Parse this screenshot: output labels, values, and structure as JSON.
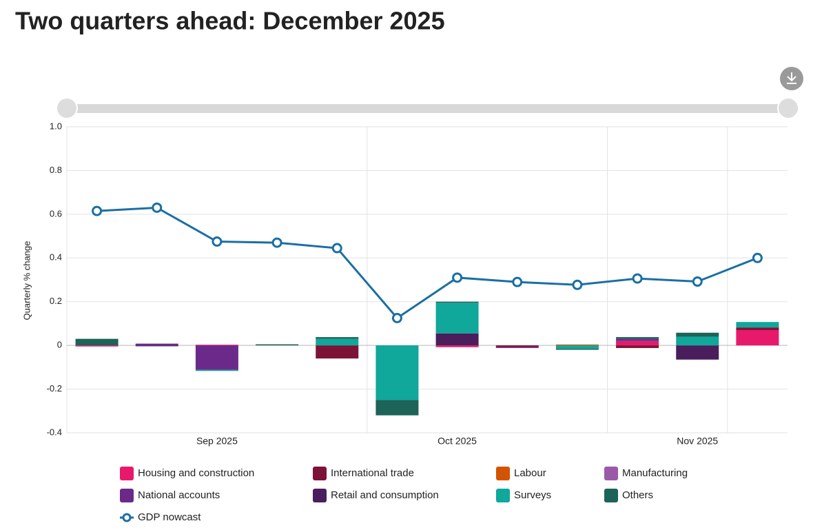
{
  "chart_data": {
    "type": "bar",
    "title": "Two quarters ahead: December 2025",
    "y_label": "Quarterly % change",
    "categories": [
      null,
      null,
      "Sep 2025",
      null,
      null,
      null,
      "Oct 2025",
      null,
      null,
      null,
      "Nov 2025",
      null
    ],
    "ylim": [
      -0.4,
      1.0
    ],
    "yticks": [
      -0.4,
      -0.2,
      0,
      0.2,
      0.4,
      0.6,
      0.8,
      {
        "value": 1.0,
        "label": "1.0"
      }
    ],
    "grid": true,
    "series": [
      {
        "name": "Housing and construction",
        "color": "#e8196b",
        "values": [
          -0.005,
          0,
          0.003,
          0,
          0,
          0,
          -0.008,
          0,
          0,
          0.02,
          0,
          0.07
        ]
      },
      {
        "name": "International trade",
        "color": "#7d1237",
        "values": [
          0,
          0,
          0,
          0,
          -0.06,
          0,
          0,
          -0.008,
          0,
          -0.012,
          0,
          0.012
        ]
      },
      {
        "name": "Labour",
        "color": "#d35400",
        "values": [
          0,
          0,
          0,
          0,
          0,
          0,
          0,
          0,
          0.004,
          0,
          0,
          0
        ]
      },
      {
        "name": "Manufacturing",
        "color": "#9b59a8",
        "values": [
          0,
          0,
          0,
          0,
          0,
          0,
          0,
          0,
          0,
          0,
          0,
          0
        ]
      },
      {
        "name": "National accounts",
        "color": "#6b2a8a",
        "values": [
          0,
          0.008,
          -0.112,
          0,
          0,
          0,
          0,
          -0.004,
          0,
          0.01,
          0,
          0
        ]
      },
      {
        "name": "Retail and consumption",
        "color": "#4a1e5c",
        "values": [
          0,
          -0.004,
          0,
          0,
          0,
          0,
          0.055,
          0,
          0,
          0,
          -0.065,
          0
        ]
      },
      {
        "name": "Surveys",
        "color": "#0fa89a",
        "values": [
          0,
          0,
          -0.005,
          0,
          0.03,
          -0.25,
          0.14,
          0,
          -0.015,
          0,
          0.04,
          0.025
        ]
      },
      {
        "name": "Others",
        "color": "#1d6357",
        "values": [
          0.03,
          0,
          0,
          0.005,
          0.008,
          -0.07,
          0.005,
          0,
          -0.005,
          0.008,
          0.018,
          0
        ]
      },
      {
        "name": "GDP nowcast",
        "type": "line",
        "color": "#1a6fa3",
        "values": [
          0.615,
          0.63,
          0.475,
          0.47,
          0.445,
          0.125,
          0.31,
          0.29,
          0.277,
          0.306,
          0.292,
          0.4
        ]
      }
    ]
  }
}
